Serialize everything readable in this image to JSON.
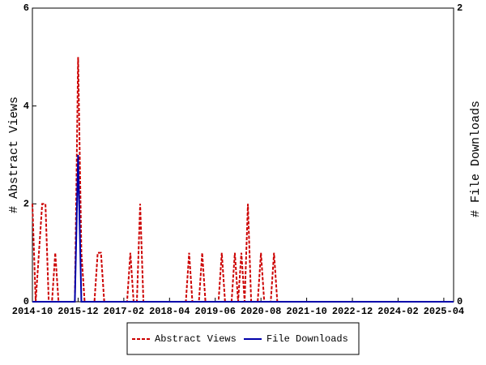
{
  "chart_data": {
    "type": "line",
    "x": [
      "2014-10",
      "2014-11",
      "2014-12",
      "2015-01",
      "2015-02",
      "2015-03",
      "2015-04",
      "2015-05",
      "2015-06",
      "2015-07",
      "2015-08",
      "2015-09",
      "2015-10",
      "2015-11",
      "2015-12",
      "2016-01",
      "2016-02",
      "2016-03",
      "2016-04",
      "2016-05",
      "2016-06",
      "2016-07",
      "2016-08",
      "2016-09",
      "2016-10",
      "2016-11",
      "2016-12",
      "2017-01",
      "2017-02",
      "2017-03",
      "2017-04",
      "2017-05",
      "2017-06",
      "2017-07",
      "2017-08",
      "2017-09",
      "2017-10",
      "2017-11",
      "2017-12",
      "2018-01",
      "2018-02",
      "2018-03",
      "2018-04",
      "2018-05",
      "2018-06",
      "2018-07",
      "2018-08",
      "2018-09",
      "2018-10",
      "2018-11",
      "2018-12",
      "2019-01",
      "2019-02",
      "2019-03",
      "2019-04",
      "2019-05",
      "2019-06",
      "2019-07",
      "2019-08",
      "2019-09",
      "2019-10",
      "2019-11",
      "2019-12",
      "2020-01",
      "2020-02",
      "2020-03",
      "2020-04",
      "2020-05",
      "2020-06",
      "2020-07",
      "2020-08",
      "2020-09",
      "2020-10",
      "2020-11",
      "2020-12",
      "2021-01",
      "2021-02",
      "2021-03",
      "2021-04",
      "2021-05",
      "2021-06",
      "2021-07",
      "2021-08",
      "2021-09",
      "2021-10",
      "2021-11",
      "2021-12",
      "2022-01",
      "2022-02",
      "2022-03",
      "2022-04",
      "2022-05",
      "2022-06",
      "2022-07",
      "2022-08",
      "2022-09",
      "2022-10",
      "2022-11",
      "2022-12",
      "2023-01",
      "2023-02",
      "2023-03",
      "2023-04",
      "2023-05",
      "2023-06",
      "2023-07",
      "2023-08",
      "2023-09",
      "2023-10",
      "2023-11",
      "2023-12",
      "2024-01",
      "2024-02",
      "2024-03",
      "2024-04",
      "2024-05",
      "2024-06",
      "2024-07",
      "2024-08",
      "2024-09",
      "2024-10",
      "2024-11",
      "2024-12",
      "2025-01",
      "2025-02",
      "2025-03",
      "2025-04",
      "2025-05",
      "2025-06",
      "2025-07"
    ],
    "xticks": [
      "2014-10",
      "2015-12",
      "2017-02",
      "2018-04",
      "2019-06",
      "2020-08",
      "2021-10",
      "2022-12",
      "2024-02",
      "2025-04"
    ],
    "series": [
      {
        "name": "Abstract Views",
        "color": "#cc0000",
        "dashed": true,
        "values": [
          2,
          0,
          1,
          2,
          2,
          0,
          0,
          1,
          0,
          0,
          0,
          0,
          0,
          0,
          5,
          1,
          0,
          0,
          0,
          0,
          1,
          1,
          0,
          0,
          0,
          0,
          0,
          0,
          0,
          0,
          1,
          0,
          0,
          2,
          0,
          0,
          0,
          0,
          0,
          0,
          0,
          0,
          0,
          0,
          0,
          0,
          0,
          0,
          1,
          0,
          0,
          0,
          1,
          0,
          0,
          0,
          0,
          0,
          1,
          0,
          0,
          0,
          1,
          0,
          1,
          0,
          2,
          0,
          0,
          0,
          1,
          0,
          0,
          0,
          1,
          0,
          0,
          0,
          0,
          0,
          0,
          0,
          0,
          0,
          0,
          0,
          0,
          0,
          0,
          0,
          0,
          0,
          0,
          0,
          0,
          0,
          0,
          0,
          0,
          0,
          0,
          0,
          0,
          0,
          0,
          0,
          0,
          0,
          0,
          0,
          0,
          0,
          0,
          0,
          0,
          0,
          0,
          0,
          0,
          0,
          0,
          0,
          0,
          0,
          0,
          0,
          0,
          0,
          0,
          0
        ]
      },
      {
        "name": "File Downloads",
        "color": "#0000aa",
        "axis": "y2",
        "values": [
          0,
          0,
          0,
          0,
          0,
          0,
          0,
          0,
          0,
          0,
          0,
          0,
          0,
          0,
          1,
          0,
          0,
          0,
          0,
          0,
          0,
          0,
          0,
          0,
          0,
          0,
          0,
          0,
          0,
          0,
          0,
          0,
          0,
          0,
          0,
          0,
          0,
          0,
          0,
          0,
          0,
          0,
          0,
          0,
          0,
          0,
          0,
          0,
          0,
          0,
          0,
          0,
          0,
          0,
          0,
          0,
          0,
          0,
          0,
          0,
          0,
          0,
          0,
          0,
          0,
          0,
          0,
          0,
          0,
          0,
          0,
          0,
          0,
          0,
          0,
          0,
          0,
          0,
          0,
          0,
          0,
          0,
          0,
          0,
          0,
          0,
          0,
          0,
          0,
          0,
          0,
          0,
          0,
          0,
          0,
          0,
          0,
          0,
          0,
          0,
          0,
          0,
          0,
          0,
          0,
          0,
          0,
          0,
          0,
          0,
          0,
          0,
          0,
          0,
          0,
          0,
          0,
          0,
          0,
          0,
          0,
          0,
          0,
          0,
          0,
          0,
          0,
          0,
          0,
          0
        ]
      }
    ],
    "ylabel": "# Abstract Views",
    "y2label": "# File Downloads",
    "ylim": [
      0,
      6
    ],
    "yticks": [
      0,
      2,
      4,
      6
    ],
    "y2lim": [
      0,
      2
    ],
    "y2ticks": [
      0,
      2
    ],
    "legend": "bottom"
  }
}
